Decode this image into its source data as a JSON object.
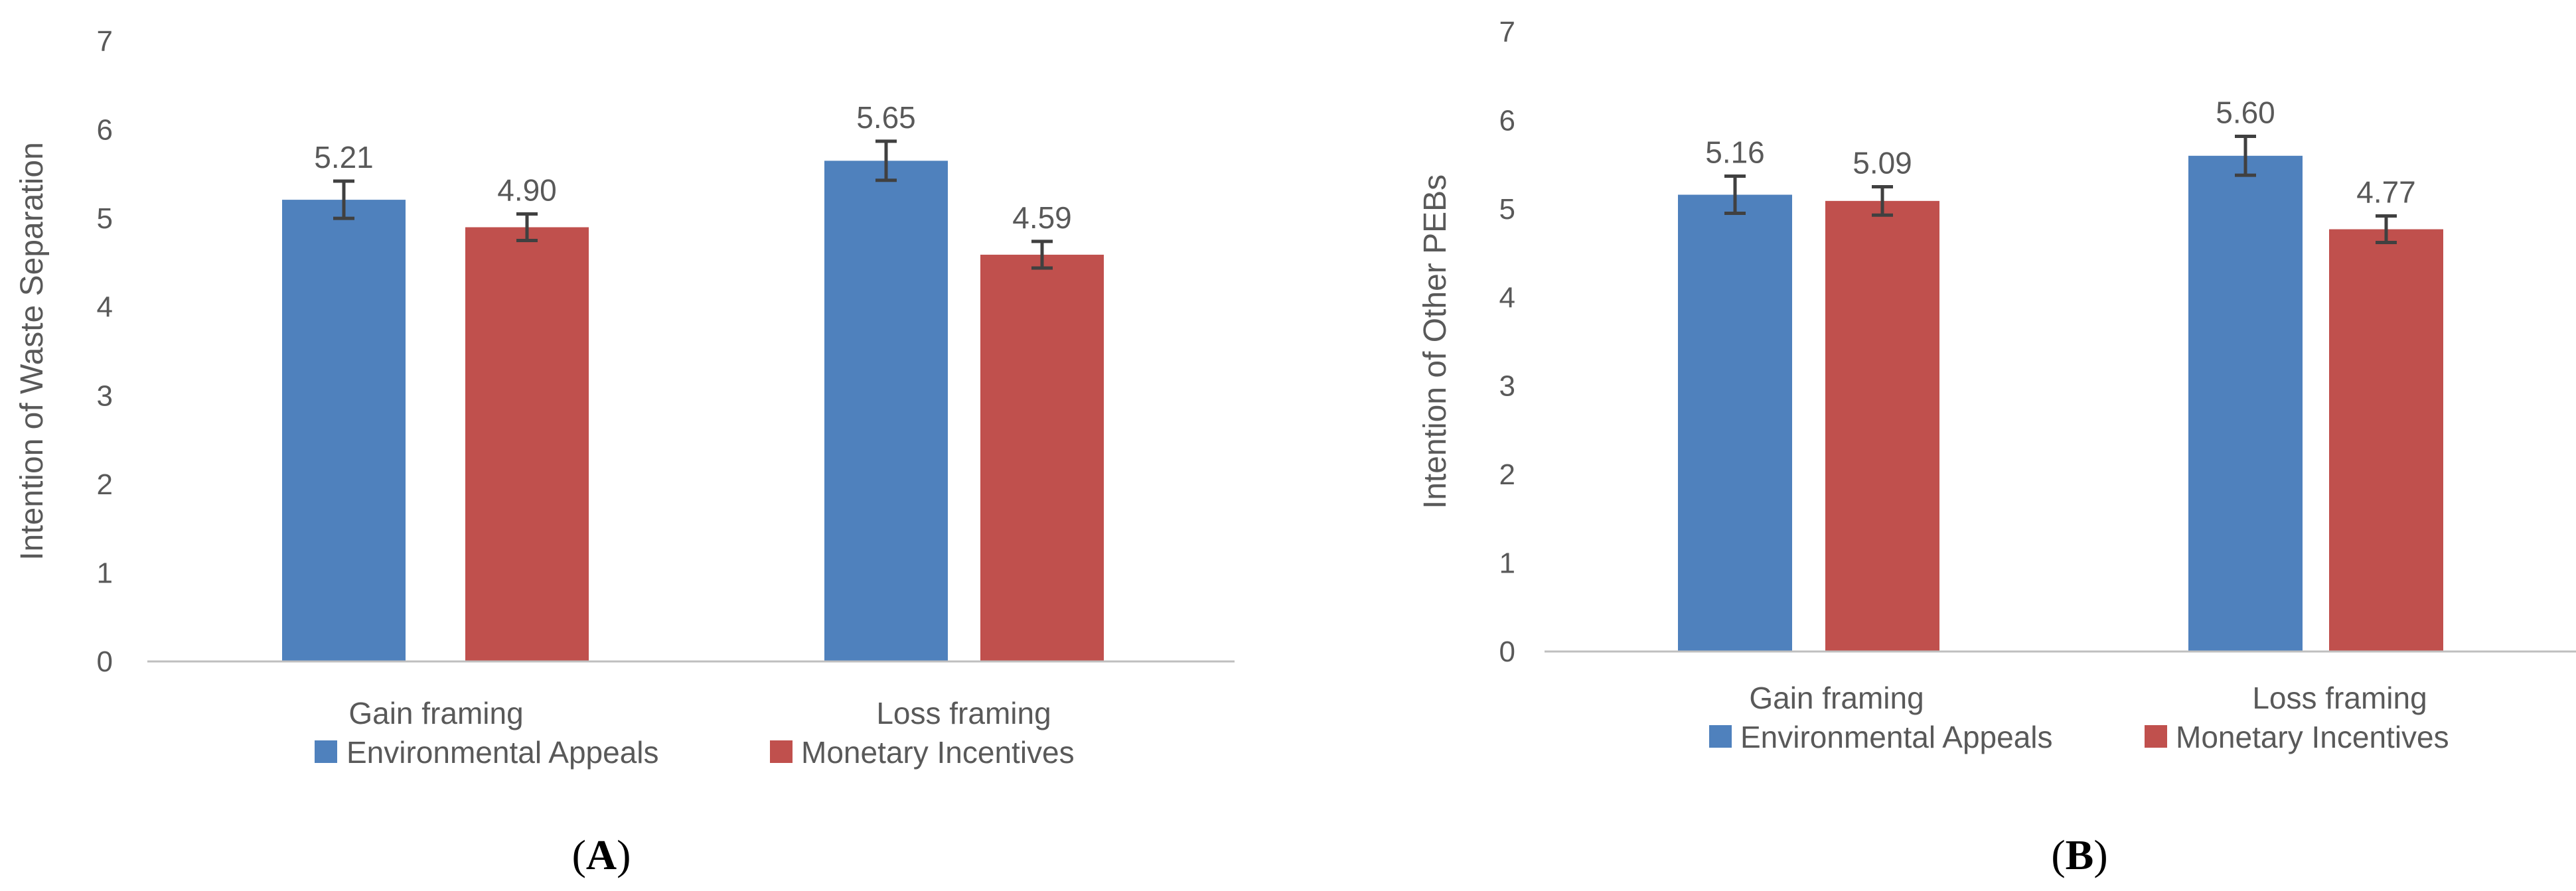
{
  "colors": {
    "environmental": "#4F81BD",
    "monetary": "#C0504D",
    "axis": "#BFBFBF",
    "text": "#595959",
    "error_bar": "#404040"
  },
  "chart_data": [
    {
      "type": "bar",
      "panel": "A",
      "panel_label": "(A)",
      "categories": [
        "Gain framing",
        "Loss framing"
      ],
      "series": [
        {
          "name": "Environmental Appeals",
          "values": [
            5.21,
            5.65
          ],
          "labels": [
            "5.21",
            "5.65"
          ],
          "error": [
            0.21,
            0.22
          ]
        },
        {
          "name": "Monetary Incentives",
          "values": [
            4.9,
            4.59
          ],
          "labels": [
            "4.90",
            "4.59"
          ],
          "error": [
            0.15,
            0.15
          ]
        }
      ],
      "ylabel": "Intention of Waste Separation",
      "xlabel": "",
      "ylim": [
        0,
        7
      ],
      "yticks": [
        "0",
        "1",
        "2",
        "3",
        "4",
        "5",
        "6",
        "7"
      ],
      "legend_position": "bottom",
      "grid": false
    },
    {
      "type": "bar",
      "panel": "B",
      "panel_label": "(B)",
      "categories": [
        "Gain framing",
        "Loss framing"
      ],
      "series": [
        {
          "name": "Environmental Appeals",
          "values": [
            5.16,
            5.6
          ],
          "labels": [
            "5.16",
            "5.60"
          ],
          "error": [
            0.21,
            0.22
          ]
        },
        {
          "name": "Monetary  Incentives",
          "values": [
            5.09,
            4.77
          ],
          "labels": [
            "5.09",
            "4.77"
          ],
          "error": [
            0.16,
            0.15
          ]
        }
      ],
      "ylabel": "Intention of Other  PEBs",
      "xlabel": "",
      "ylim": [
        0,
        7
      ],
      "yticks": [
        "0",
        "1",
        "2",
        "3",
        "4",
        "5",
        "6",
        "7"
      ],
      "legend_position": "bottom",
      "grid": false
    }
  ]
}
